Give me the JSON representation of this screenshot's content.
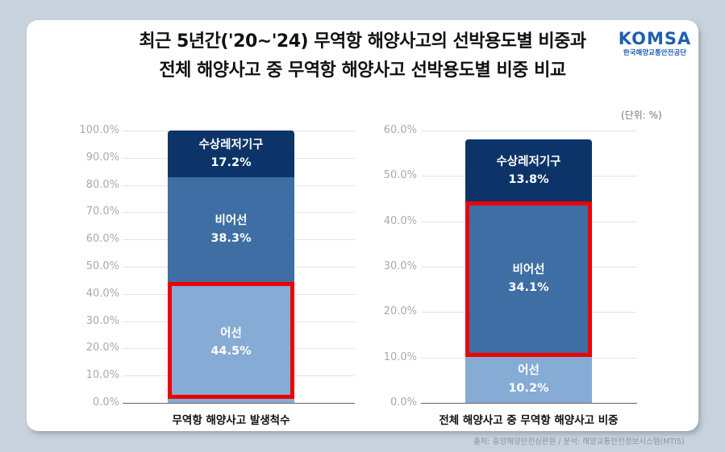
{
  "title": {
    "line1": "최근 5년간('20~'24) 무역항 해양사고의 선박용도별 비중과",
    "line2": "전체 해양사고 중 무역항 해양사고 선박용도별 비중 비교"
  },
  "logo": {
    "main": "KOMSA",
    "sub": "한국해양교통안전공단"
  },
  "unit_label": "(단위: %)",
  "source": "출처: 중앙해양안전심판원 / 분석: 해양교통안전정보시스템(MTIS)",
  "colors": {
    "fishing": "#86abd5",
    "non_fishing": "#3e6ea3",
    "leisure": "#0d3468",
    "highlight": "#ee0000",
    "background": "#c8d2dc"
  },
  "chart_data": [
    {
      "type": "bar",
      "stacked": true,
      "title": "",
      "categories": [
        "무역항 해양사고 발생척수"
      ],
      "series": [
        {
          "name": "어선",
          "values": [
            44.5
          ]
        },
        {
          "name": "비어선",
          "values": [
            38.3
          ]
        },
        {
          "name": "수상레저기구",
          "values": [
            17.2
          ]
        }
      ],
      "value_labels": [
        "44.5%",
        "38.3%",
        "17.2%"
      ],
      "highlighted_series": "어선",
      "ylim": [
        0,
        100
      ],
      "yticks": [
        "0.0%",
        "10.0%",
        "20.0%",
        "30.0%",
        "40.0%",
        "50.0%",
        "60.0%",
        "70.0%",
        "80.0%",
        "90.0%",
        "100.0%"
      ],
      "grid": true
    },
    {
      "type": "bar",
      "stacked": true,
      "title": "",
      "categories": [
        "전체 해양사고 중 무역항 해양사고 비중"
      ],
      "series": [
        {
          "name": "어선",
          "values": [
            10.2
          ]
        },
        {
          "name": "비어선",
          "values": [
            34.1
          ]
        },
        {
          "name": "수상레저기구",
          "values": [
            13.8
          ]
        }
      ],
      "value_labels": [
        "10.2%",
        "34.1%",
        "13.8%"
      ],
      "highlighted_series": "비어선",
      "ylim": [
        0,
        60
      ],
      "yticks": [
        "0.0%",
        "10.0%",
        "20.0%",
        "30.0%",
        "40.0%",
        "50.0%",
        "60.0%"
      ],
      "grid": true,
      "unit": "(단위: %)"
    }
  ]
}
